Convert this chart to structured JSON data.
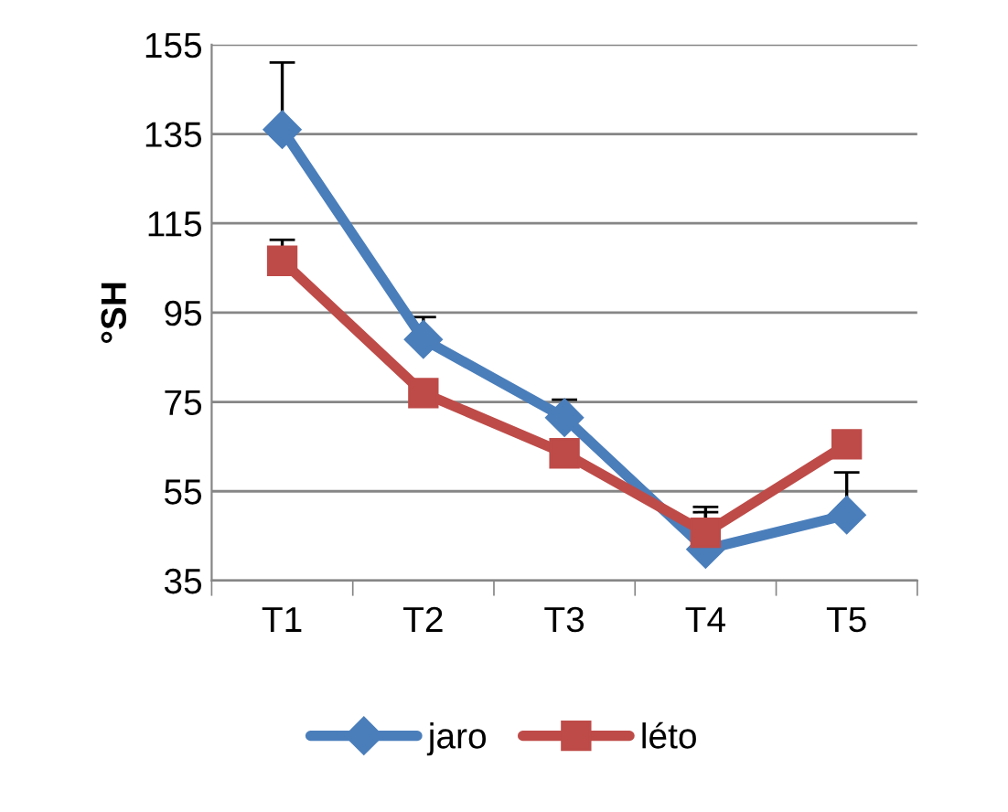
{
  "chart_data": {
    "type": "line",
    "ylabel": "°SH",
    "categories": [
      "T1",
      "T2",
      "T3",
      "T4",
      "T5"
    ],
    "series": [
      {
        "name": "jaro",
        "color": "#4a7ebb",
        "marker": "diamond",
        "values": [
          136,
          89,
          71.5,
          42,
          49.7
        ],
        "errors": [
          [
            136,
            151
          ],
          [
            89,
            94
          ],
          [
            71.5,
            75.5
          ],
          [
            42,
            51.5
          ],
          [
            49.7,
            59.2
          ]
        ]
      },
      {
        "name": "léto",
        "color": "#be4b48",
        "marker": "square",
        "values": [
          106.6,
          77,
          63.5,
          45.7,
          65.5
        ],
        "errors": [
          [
            106.6,
            111.3
          ],
          null,
          null,
          [
            45.7,
            50.3
          ],
          null
        ]
      }
    ],
    "ylim": [
      35,
      155
    ],
    "yticks": [
      35,
      55,
      75,
      95,
      115,
      135,
      155
    ],
    "grid": "y",
    "legend": "bottom",
    "line_style": "solid"
  }
}
